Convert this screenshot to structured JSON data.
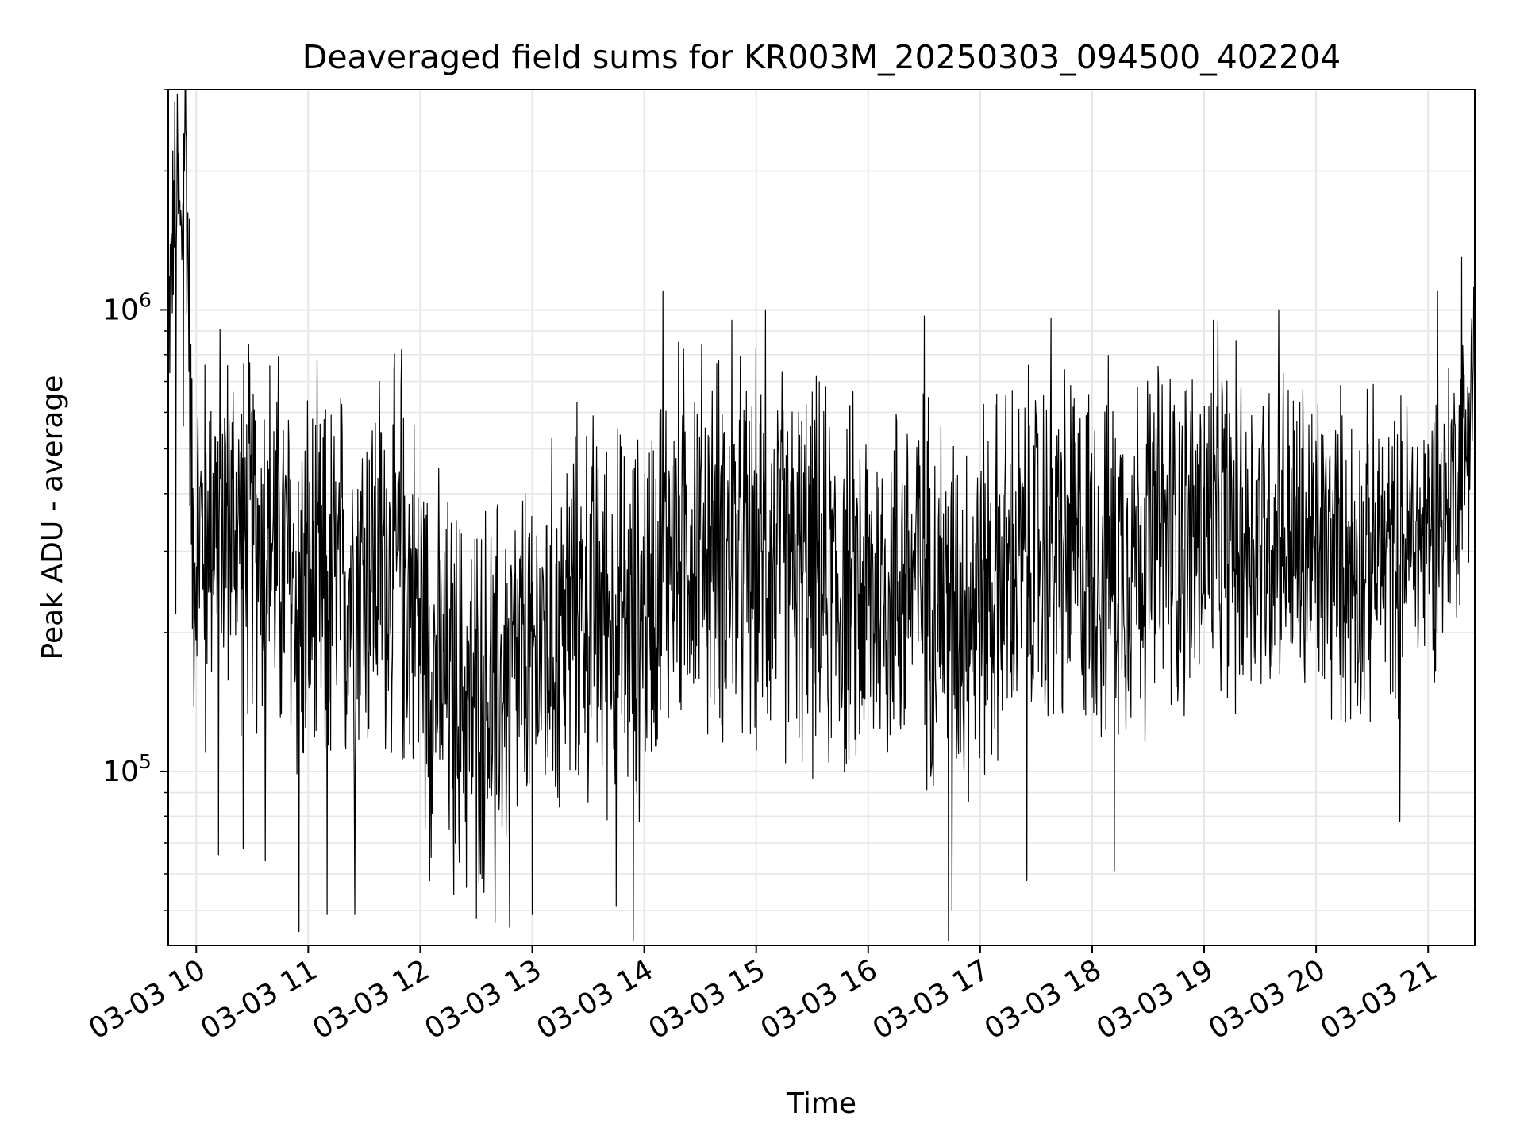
{
  "chart_data": {
    "type": "line",
    "title": "Deaveraged field sums for KR003M_20250303_094500_402204",
    "xlabel": "Time",
    "ylabel": "Peak ADU - average",
    "x_scale": "date",
    "y_scale": "log",
    "xlim": [
      "2025-03-03T09:45:00",
      "2025-03-03T21:25:00"
    ],
    "ylim": [
      42000,
      3000000
    ],
    "x_ticks": [
      {
        "time": "2025-03-03T10:00",
        "label": "03-03 10"
      },
      {
        "time": "2025-03-03T11:00",
        "label": "03-03 11"
      },
      {
        "time": "2025-03-03T12:00",
        "label": "03-03 12"
      },
      {
        "time": "2025-03-03T13:00",
        "label": "03-03 13"
      },
      {
        "time": "2025-03-03T14:00",
        "label": "03-03 14"
      },
      {
        "time": "2025-03-03T15:00",
        "label": "03-03 15"
      },
      {
        "time": "2025-03-03T16:00",
        "label": "03-03 16"
      },
      {
        "time": "2025-03-03T17:00",
        "label": "03-03 17"
      },
      {
        "time": "2025-03-03T18:00",
        "label": "03-03 18"
      },
      {
        "time": "2025-03-03T19:00",
        "label": "03-03 19"
      },
      {
        "time": "2025-03-03T20:00",
        "label": "03-03 20"
      },
      {
        "time": "2025-03-03T21:00",
        "label": "03-03 21"
      }
    ],
    "y_ticks": [
      {
        "value": 100000,
        "base": "10",
        "exp": "5"
      },
      {
        "value": 1000000,
        "base": "10",
        "exp": "6"
      }
    ],
    "grid": true,
    "legend": "none",
    "series": [
      {
        "color": "#000000",
        "points": [
          [
            "2025-03-03T09:45",
            900000
          ],
          [
            "2025-03-03T09:48",
            1600000
          ],
          [
            "2025-03-03T09:50",
            1900000
          ],
          [
            "2025-03-03T09:52",
            1300000
          ],
          [
            "2025-03-03T09:54",
            2800000
          ],
          [
            "2025-03-03T09:56",
            1100000
          ],
          [
            "2025-03-03T09:58",
            300000
          ],
          [
            "2025-03-03T10:10",
            380000
          ],
          [
            "2025-03-03T10:25",
            330000
          ],
          [
            "2025-03-03T10:40",
            320000
          ],
          [
            "2025-03-03T10:55",
            240000
          ],
          [
            "2025-03-03T11:10",
            230000
          ],
          [
            "2025-03-03T11:25",
            270000
          ],
          [
            "2025-03-03T11:40",
            290000
          ],
          [
            "2025-03-03T11:55",
            250000
          ],
          [
            "2025-03-03T12:10",
            160000
          ],
          [
            "2025-03-03T12:25",
            140000
          ],
          [
            "2025-03-03T12:40",
            150000
          ],
          [
            "2025-03-03T12:55",
            170000
          ],
          [
            "2025-03-03T13:10",
            190000
          ],
          [
            "2025-03-03T13:25",
            230000
          ],
          [
            "2025-03-03T13:40",
            220000
          ],
          [
            "2025-03-03T13:55",
            200000
          ],
          [
            "2025-03-03T14:10",
            300000
          ],
          [
            "2025-03-03T14:25",
            330000
          ],
          [
            "2025-03-03T14:40",
            310000
          ],
          [
            "2025-03-03T14:55",
            280000
          ],
          [
            "2025-03-03T15:10",
            290000
          ],
          [
            "2025-03-03T15:25",
            270000
          ],
          [
            "2025-03-03T15:40",
            250000
          ],
          [
            "2025-03-03T15:55",
            240000
          ],
          [
            "2025-03-03T16:10",
            250000
          ],
          [
            "2025-03-03T16:25",
            270000
          ],
          [
            "2025-03-03T16:40",
            240000
          ],
          [
            "2025-03-03T16:55",
            230000
          ],
          [
            "2025-03-03T17:10",
            260000
          ],
          [
            "2025-03-03T17:25",
            280000
          ],
          [
            "2025-03-03T17:40",
            300000
          ],
          [
            "2025-03-03T17:55",
            290000
          ],
          [
            "2025-03-03T18:10",
            290000
          ],
          [
            "2025-03-03T18:25",
            310000
          ],
          [
            "2025-03-03T18:40",
            320000
          ],
          [
            "2025-03-03T18:55",
            330000
          ],
          [
            "2025-03-03T19:10",
            340000
          ],
          [
            "2025-03-03T19:25",
            320000
          ],
          [
            "2025-03-03T19:40",
            330000
          ],
          [
            "2025-03-03T19:55",
            300000
          ],
          [
            "2025-03-03T20:10",
            290000
          ],
          [
            "2025-03-03T20:25",
            280000
          ],
          [
            "2025-03-03T20:40",
            300000
          ],
          [
            "2025-03-03T20:55",
            320000
          ],
          [
            "2025-03-03T21:10",
            380000
          ],
          [
            "2025-03-03T21:20",
            500000
          ],
          [
            "2025-03-03T21:25",
            900000
          ]
        ],
        "spread_decades": [
          [
            "2025-03-03T09:45",
            0.25
          ],
          [
            "2025-03-03T10:00",
            0.45
          ],
          [
            "2025-03-03T11:00",
            0.55
          ],
          [
            "2025-03-03T12:00",
            0.5
          ],
          [
            "2025-03-03T13:00",
            0.5
          ],
          [
            "2025-03-03T14:00",
            0.5
          ],
          [
            "2025-03-03T17:00",
            0.5
          ],
          [
            "2025-03-03T20:00",
            0.45
          ],
          [
            "2025-03-03T21:25",
            0.35
          ]
        ],
        "spikes": [
          [
            "2025-03-03T09:49",
            220000
          ],
          [
            "2025-03-03T09:53",
            560000
          ],
          [
            "2025-03-03T10:05",
            110000
          ],
          [
            "2025-03-03T10:12",
            66000
          ],
          [
            "2025-03-03T10:25",
            68000
          ],
          [
            "2025-03-03T10:37",
            64000
          ],
          [
            "2025-03-03T10:55",
            45000
          ],
          [
            "2025-03-03T11:10",
            49000
          ],
          [
            "2025-03-03T11:25",
            49000
          ],
          [
            "2025-03-03T11:38",
            700000
          ],
          [
            "2025-03-03T11:50",
            820000
          ],
          [
            "2025-03-03T12:05",
            58000
          ],
          [
            "2025-03-03T12:18",
            54000
          ],
          [
            "2025-03-03T12:30",
            48000
          ],
          [
            "2025-03-03T12:40",
            47000
          ],
          [
            "2025-03-03T12:48",
            46000
          ],
          [
            "2025-03-03T13:00",
            49000
          ],
          [
            "2025-03-03T13:45",
            51000
          ],
          [
            "2025-03-03T13:54",
            43000
          ],
          [
            "2025-03-03T14:10",
            1100000
          ],
          [
            "2025-03-03T14:47",
            950000
          ],
          [
            "2025-03-03T15:05",
            1000000
          ],
          [
            "2025-03-03T16:30",
            970000
          ],
          [
            "2025-03-03T16:43",
            43000
          ],
          [
            "2025-03-03T16:45",
            50000
          ],
          [
            "2025-03-03T17:25",
            58000
          ],
          [
            "2025-03-03T17:38",
            960000
          ],
          [
            "2025-03-03T18:12",
            61000
          ],
          [
            "2025-03-03T19:05",
            950000
          ],
          [
            "2025-03-03T19:40",
            1000000
          ],
          [
            "2025-03-03T20:45",
            78000
          ],
          [
            "2025-03-03T21:05",
            1100000
          ],
          [
            "2025-03-03T21:18",
            1300000
          ]
        ]
      }
    ]
  }
}
